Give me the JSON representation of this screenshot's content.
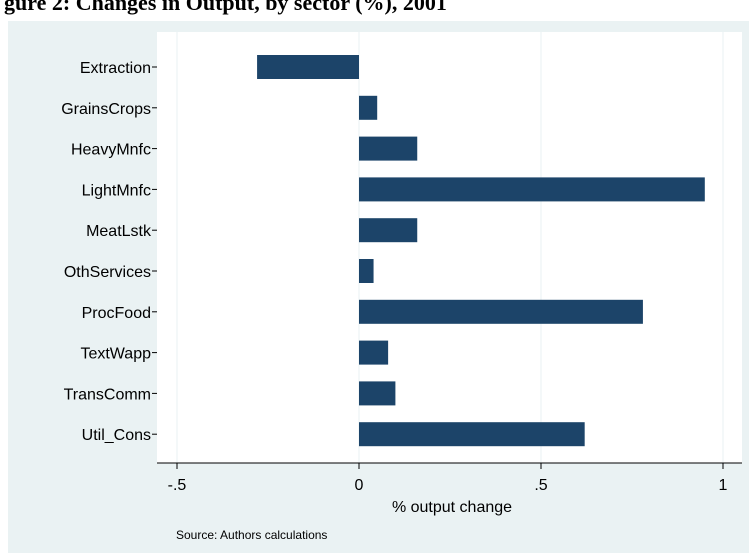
{
  "caption_text": "gure 2: Changes in Output, by sector (%), 2001",
  "chart_data": {
    "type": "bar",
    "orientation": "horizontal",
    "categories": [
      "Extraction",
      "GrainsCrops",
      "HeavyMnfc",
      "LightMnfc",
      "MeatLstk",
      "OthServices",
      "ProcFood",
      "TextWapp",
      "TransComm",
      "Util_Cons"
    ],
    "values": [
      -0.28,
      0.05,
      0.16,
      0.95,
      0.16,
      0.04,
      0.78,
      0.08,
      0.1,
      0.62
    ],
    "xlabel": "% output change",
    "xticks": [
      -0.5,
      0,
      0.5,
      1
    ],
    "xtick_labels": [
      "-.5",
      "0",
      ".5",
      "1"
    ],
    "xlim": [
      -0.5,
      1
    ],
    "grid": true,
    "legend": "none",
    "note": "Source: Authors calculations",
    "colors": {
      "bar": "#1c4469",
      "panel_background": "#eaf2f3",
      "plot_background": "#ffffff",
      "grid": "#eaf2f3"
    }
  }
}
